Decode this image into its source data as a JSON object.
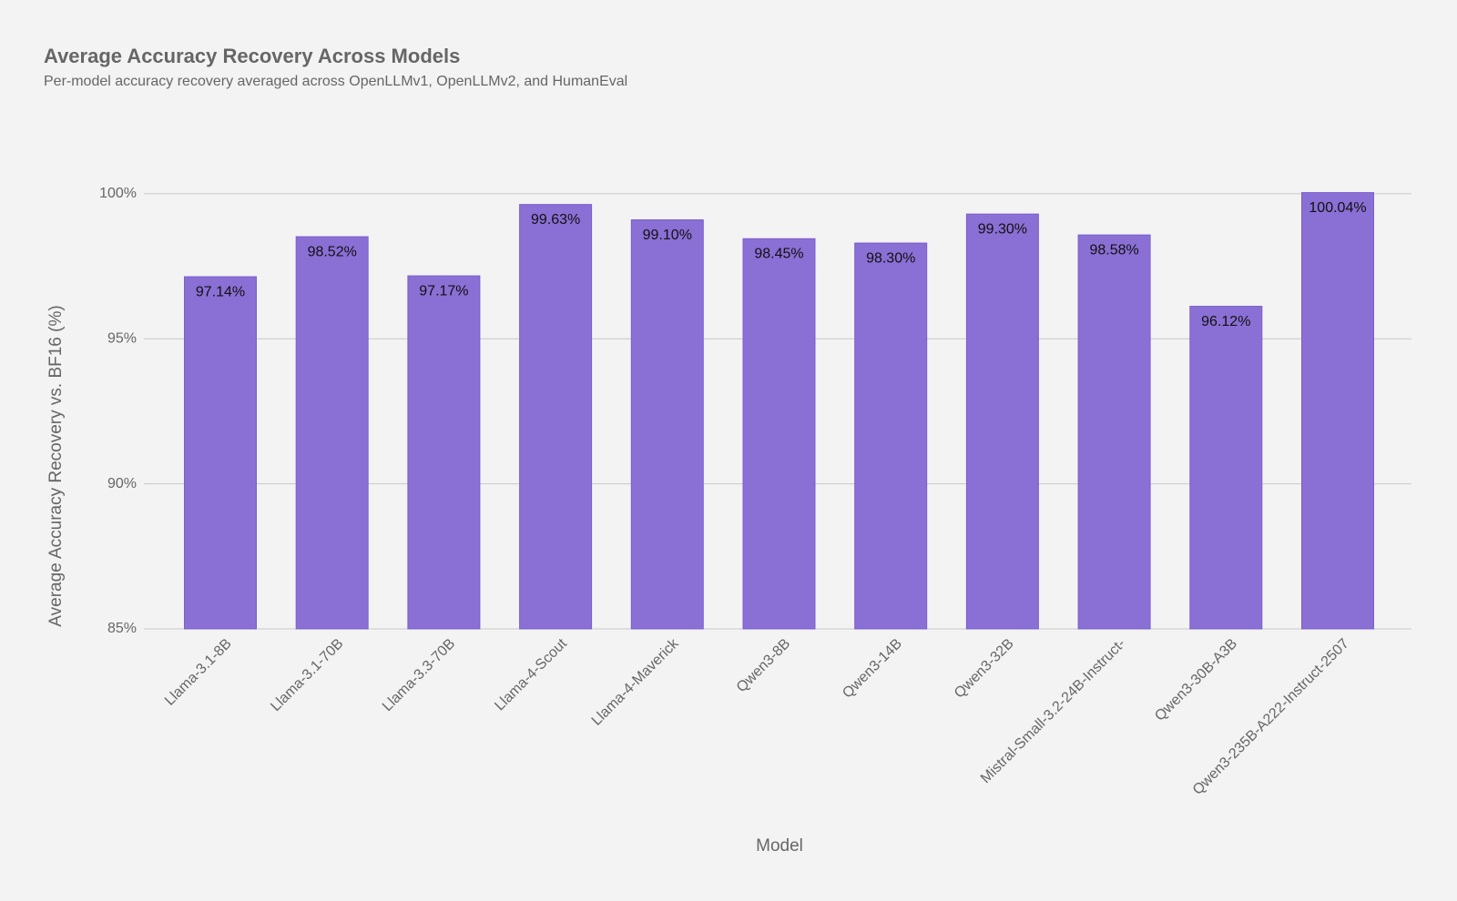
{
  "chart_data": {
    "type": "bar",
    "title": "Average Accuracy Recovery Across Models",
    "subtitle": "Per-model accuracy recovery averaged across OpenLLMv1, OpenLLMv2, and HumanEval",
    "x_label": "Model",
    "y_label": "Average Accuracy Recovery vs. BF16 (%)",
    "categories": [
      "Llama-3.1-8B",
      "Llama-3.1-70B",
      "Llama-3.3-70B",
      "Llama-4-Scout",
      "Llama-4-Maverick",
      "Qwen3-8B",
      "Qwen3-14B",
      "Qwen3-32B",
      "Mistral-Small-3.2-24B-Instruct-",
      "Qwen3-30B-A3B",
      "Qwen3-235B-A222-Instruct-2507"
    ],
    "values": [
      97.14,
      98.52,
      97.17,
      99.63,
      99.1,
      98.45,
      98.3,
      99.3,
      98.58,
      96.12,
      100.04
    ],
    "value_labels": [
      "97.14%",
      "98.52%",
      "97.17%",
      "99.63%",
      "99.10%",
      "98.45%",
      "98.30%",
      "99.30%",
      "98.58%",
      "96.12%",
      "100.04%"
    ],
    "color": "#8a6fd5",
    "ylim": [
      85,
      101
    ],
    "yticks": [
      {
        "value": 85,
        "label": "85%"
      },
      {
        "value": 90,
        "label": "90%"
      },
      {
        "value": 95,
        "label": "95%"
      },
      {
        "value": 100,
        "label": "100%"
      }
    ],
    "grid": true
  }
}
